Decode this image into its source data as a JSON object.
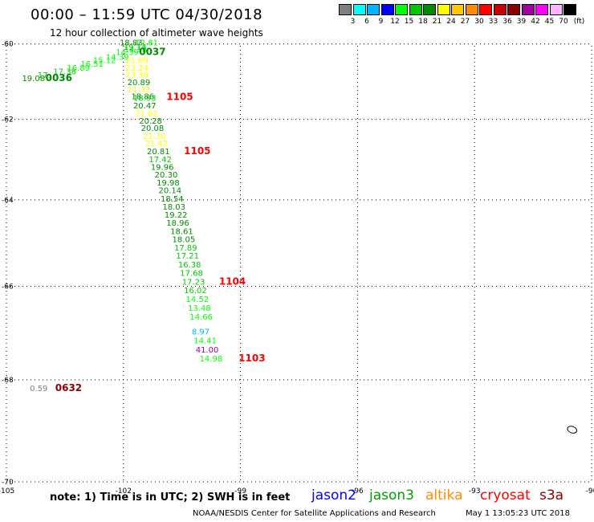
{
  "title": "00:00 – 11:59 UTC 04/30/2018",
  "subtitle": "12 hour collection of altimeter wave heights",
  "legend": {
    "unit": "(ft)",
    "bins": [
      {
        "label": "3",
        "color": "#808080"
      },
      {
        "label": "6",
        "color": "#00ffff"
      },
      {
        "label": "9",
        "color": "#00b4ff"
      },
      {
        "label": "12",
        "color": "#0000ff"
      },
      {
        "label": "15",
        "color": "#00ff00"
      },
      {
        "label": "18",
        "color": "#00c800"
      },
      {
        "label": "21",
        "color": "#008c00"
      },
      {
        "label": "24",
        "color": "#ffff00"
      },
      {
        "label": "27",
        "color": "#ffc800"
      },
      {
        "label": "30",
        "color": "#ff8c00"
      },
      {
        "label": "33",
        "color": "#ff0000"
      },
      {
        "label": "36",
        "color": "#c80000"
      },
      {
        "label": "39",
        "color": "#8c0000"
      },
      {
        "label": "42",
        "color": "#a000a0"
      },
      {
        "label": "45",
        "color": "#ff00ff"
      },
      {
        "label": "70",
        "color": "#ffb4ff"
      },
      {
        "label": "",
        "color": "#000000"
      }
    ]
  },
  "map": {
    "lon_range": [
      -105,
      -90
    ],
    "lat_range": [
      -70,
      -60
    ],
    "lon_ticks": [
      "-105",
      "-102",
      "-99",
      "-96",
      "-93",
      "-90"
    ],
    "lat_ticks": [
      "-60",
      "-62",
      "-64",
      "-66",
      "-68",
      "-70"
    ],
    "tick_lons": [
      -105,
      -102,
      -99,
      -96,
      -93,
      -90
    ],
    "tick_lats": [
      -60,
      -62,
      -64,
      -66,
      -68,
      -70
    ],
    "gridlines": true,
    "island": {
      "lon": -90.5,
      "lat": -69.0
    }
  },
  "observations": [
    {
      "value": "19.08",
      "lon": -104.6,
      "lat": -61.0,
      "color": "#008c00"
    },
    {
      "value": "17.",
      "lon": -104.2,
      "lat": -60.92,
      "color": "#00c800"
    },
    {
      "value": "17.38",
      "lon": -103.8,
      "lat": -60.82,
      "color": "#00c800"
    },
    {
      "value": "16.89",
      "lon": -103.45,
      "lat": -60.72,
      "color": "#00ff00"
    },
    {
      "value": "16.51",
      "lon": -103.1,
      "lat": -60.62,
      "color": "#00ff00"
    },
    {
      "value": "15.12",
      "lon": -102.78,
      "lat": -60.52,
      "color": "#00ff00"
    },
    {
      "value": "14.39",
      "lon": -102.45,
      "lat": -60.43,
      "color": "#00ff00"
    },
    {
      "value": "14.39",
      "lon": -102.2,
      "lat": -60.3,
      "color": "#00ff00"
    },
    {
      "value": "14.18",
      "lon": -101.98,
      "lat": -60.22,
      "color": "#00ff00"
    },
    {
      "value": "18.83",
      "lon": -102.1,
      "lat": -60.04,
      "color": "#008c00"
    },
    {
      "value": "12.81",
      "lon": -101.7,
      "lat": -60.04,
      "color": "#00ff00"
    },
    {
      "value": "19.14",
      "lon": -102.0,
      "lat": -60.16,
      "color": "#00c800"
    },
    {
      "value": "21.69",
      "lon": -101.95,
      "lat": -60.52,
      "color": "#ffff00"
    },
    {
      "value": "23.24",
      "lon": -101.95,
      "lat": -60.72,
      "color": "#ffff00"
    },
    {
      "value": "23.38",
      "lon": -101.95,
      "lat": -60.91,
      "color": "#ffff00"
    },
    {
      "value": "20.89",
      "lon": -101.9,
      "lat": -61.11,
      "color": "#008c00"
    },
    {
      "value": "21.32",
      "lon": -101.9,
      "lat": -61.3,
      "color": "#ffff00"
    },
    {
      "value": "18.86",
      "lon": -101.8,
      "lat": -61.48,
      "color": "#008c00"
    },
    {
      "value": "18.93",
      "lon": -101.75,
      "lat": -61.52,
      "color": "#00c800"
    },
    {
      "value": "20.47",
      "lon": -101.75,
      "lat": -61.72,
      "color": "#008c00"
    },
    {
      "value": "21.62",
      "lon": -101.7,
      "lat": -61.92,
      "color": "#ffff00"
    },
    {
      "value": "20.28",
      "lon": -101.6,
      "lat": -62.11,
      "color": "#008c00"
    },
    {
      "value": "20.08",
      "lon": -101.55,
      "lat": -62.3,
      "color": "#008c00"
    },
    {
      "value": "21.30",
      "lon": -101.5,
      "lat": -62.5,
      "color": "#ffff00"
    },
    {
      "value": "21.42",
      "lon": -101.45,
      "lat": -62.68,
      "color": "#ffff00"
    },
    {
      "value": "20.81",
      "lon": -101.4,
      "lat": -62.88,
      "color": "#008c00"
    },
    {
      "value": "17.42",
      "lon": -101.35,
      "lat": -63.08,
      "color": "#00c800"
    },
    {
      "value": "19.96",
      "lon": -101.3,
      "lat": -63.27,
      "color": "#008c00"
    },
    {
      "value": "20.30",
      "lon": -101.2,
      "lat": -63.46,
      "color": "#008c00"
    },
    {
      "value": "19.98",
      "lon": -101.15,
      "lat": -63.65,
      "color": "#008c00"
    },
    {
      "value": "20.14",
      "lon": -101.1,
      "lat": -63.84,
      "color": "#008c00"
    },
    {
      "value": "18.54",
      "lon": -101.05,
      "lat": -64.04,
      "color": "#008c00"
    },
    {
      "value": "18.03",
      "lon": -101.0,
      "lat": -64.23,
      "color": "#008c00"
    },
    {
      "value": "19.22",
      "lon": -100.95,
      "lat": -64.42,
      "color": "#008c00"
    },
    {
      "value": "18.96",
      "lon": -100.9,
      "lat": -64.61,
      "color": "#008c00"
    },
    {
      "value": "18.61",
      "lon": -100.8,
      "lat": -64.81,
      "color": "#008c00"
    },
    {
      "value": "18.05",
      "lon": -100.75,
      "lat": -65.0,
      "color": "#008c00"
    },
    {
      "value": "17.89",
      "lon": -100.7,
      "lat": -65.19,
      "color": "#00c800"
    },
    {
      "value": "17.21",
      "lon": -100.65,
      "lat": -65.38,
      "color": "#00c800"
    },
    {
      "value": "16.38",
      "lon": -100.6,
      "lat": -65.58,
      "color": "#00c800"
    },
    {
      "value": "17.68",
      "lon": -100.55,
      "lat": -65.77,
      "color": "#00c800"
    },
    {
      "value": "17.23",
      "lon": -100.5,
      "lat": -65.96,
      "color": "#00c800"
    },
    {
      "value": "16.02",
      "lon": -100.45,
      "lat": -66.15,
      "color": "#00c800"
    },
    {
      "value": "14.52",
      "lon": -100.4,
      "lat": -66.35,
      "color": "#00ff00"
    },
    {
      "value": "13.48",
      "lon": -100.35,
      "lat": -66.54,
      "color": "#00ff00"
    },
    {
      "value": "14.66",
      "lon": -100.3,
      "lat": -66.73,
      "color": "#00ff00"
    },
    {
      "value": "8.97",
      "lon": -100.25,
      "lat": -67.05,
      "color": "#00b4ff"
    },
    {
      "value": "14.41",
      "lon": -100.2,
      "lat": -67.24,
      "color": "#00ff00"
    },
    {
      "value": "41.00",
      "lon": -100.15,
      "lat": -67.43,
      "color": "#a000a0"
    },
    {
      "value": "14.98",
      "lon": -100.05,
      "lat": -67.62,
      "color": "#00ff00"
    },
    {
      "value": "0.59",
      "lon": -104.4,
      "lat": -68.23,
      "color": "#808080"
    }
  ],
  "time_labels": [
    {
      "text": "0036",
      "lon": -104.0,
      "lat": -61.0,
      "color": "#008c00"
    },
    {
      "text": "0037",
      "lon": -101.6,
      "lat": -60.3,
      "color": "#008c00"
    },
    {
      "text": "1105",
      "lon": -100.9,
      "lat": -61.5,
      "color": "#ff0000"
    },
    {
      "text": "1105",
      "lon": -100.45,
      "lat": -62.88,
      "color": "#ff0000"
    },
    {
      "text": "1104",
      "lon": -99.55,
      "lat": -65.96,
      "color": "#ff0000"
    },
    {
      "text": "1103",
      "lon": -99.05,
      "lat": -67.62,
      "color": "#ff0000"
    },
    {
      "text": "0632",
      "lon": -103.75,
      "lat": -68.23,
      "color": "#8c0000"
    }
  ],
  "note": "note:  1) Time is in UTC;  2) SWH is in feet",
  "missions": [
    {
      "name": "jason2",
      "color": "#0000ff"
    },
    {
      "name": "jason3",
      "color": "#00a000"
    },
    {
      "name": "altika",
      "color": "#ff8c00"
    },
    {
      "name": "cryosat",
      "color": "#ff0000"
    },
    {
      "name": "s3a",
      "color": "#8c0000"
    }
  ],
  "credit": "NOAA/NESDIS Center for Satellite Applications and Research",
  "timestamp": "May  1 13:05:23 UTC 2018"
}
